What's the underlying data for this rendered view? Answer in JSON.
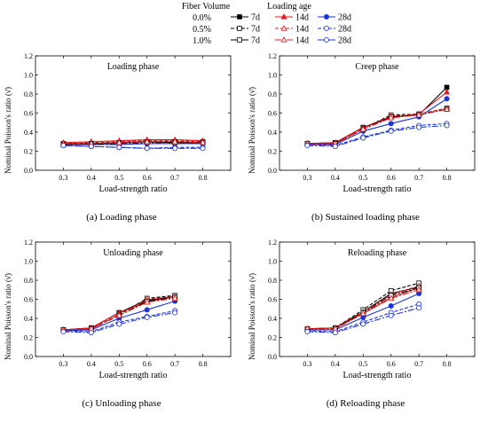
{
  "legend": {
    "fiber_title": "Fiber Volume",
    "age_title": "Loading age",
    "fiber_levels": [
      "0.0%",
      "0.5%",
      "1.0%"
    ],
    "ages": [
      "7d",
      "14d",
      "28d"
    ]
  },
  "colors": {
    "7d": "#000000",
    "14d": "#e3191c",
    "28d": "#1a35d6"
  },
  "chart_data": [
    {
      "type": "line",
      "panel_label": "(a)  Loading phase",
      "inner_title": "Loading phase",
      "xlabel": "Load-strength ratio",
      "ylabel": "Nominal Poisson's ratio (ν̄)",
      "x": [
        0.3,
        0.4,
        0.5,
        0.6,
        0.7,
        0.8
      ],
      "xlim": [
        0.2,
        0.9
      ],
      "ylim": [
        0.0,
        1.2
      ],
      "xticks": [
        "0.3",
        "0.4",
        "0.5",
        "0.6",
        "0.7",
        "0.8"
      ],
      "yticks": [
        "0.0",
        "0.2",
        "0.4",
        "0.6",
        "0.8",
        "1.0",
        "1.2"
      ],
      "series": [
        {
          "fiber": "0.0%",
          "age": "7d",
          "values": [
            0.28,
            0.28,
            0.29,
            0.3,
            0.29,
            0.29
          ]
        },
        {
          "fiber": "0.0%",
          "age": "14d",
          "values": [
            0.29,
            0.3,
            0.31,
            0.32,
            0.32,
            0.31
          ]
        },
        {
          "fiber": "0.0%",
          "age": "28d",
          "values": [
            0.27,
            0.27,
            0.27,
            0.28,
            0.28,
            0.28
          ]
        },
        {
          "fiber": "0.5%",
          "age": "7d",
          "values": [
            0.27,
            0.28,
            0.29,
            0.3,
            0.3,
            0.3
          ]
        },
        {
          "fiber": "0.5%",
          "age": "14d",
          "values": [
            0.28,
            0.29,
            0.3,
            0.31,
            0.31,
            0.3
          ]
        },
        {
          "fiber": "0.5%",
          "age": "28d",
          "values": [
            0.26,
            0.25,
            0.24,
            0.23,
            0.24,
            0.24
          ]
        },
        {
          "fiber": "1.0%",
          "age": "7d",
          "values": [
            0.27,
            0.27,
            0.28,
            0.29,
            0.29,
            0.29
          ]
        },
        {
          "fiber": "1.0%",
          "age": "14d",
          "values": [
            0.28,
            0.28,
            0.29,
            0.3,
            0.3,
            0.29
          ]
        },
        {
          "fiber": "1.0%",
          "age": "28d",
          "values": [
            0.26,
            0.25,
            0.24,
            0.23,
            0.23,
            0.23
          ]
        }
      ]
    },
    {
      "type": "line",
      "panel_label": "(b)  Sustained loading phase",
      "inner_title": "Creep phase",
      "xlabel": "Load-strength ratio",
      "ylabel": "Nominal Poisson's ratio (ν̄)",
      "x": [
        0.3,
        0.4,
        0.5,
        0.6,
        0.7,
        0.8
      ],
      "xlim": [
        0.2,
        0.9
      ],
      "ylim": [
        0.0,
        1.2
      ],
      "xticks": [
        "0.3",
        "0.4",
        "0.5",
        "0.6",
        "0.7",
        "0.8"
      ],
      "yticks": [
        "0.0",
        "0.2",
        "0.4",
        "0.6",
        "0.8",
        "1.0",
        "1.2"
      ],
      "series": [
        {
          "fiber": "0.0%",
          "age": "7d",
          "values": [
            0.28,
            0.29,
            0.45,
            0.56,
            0.58,
            0.87
          ]
        },
        {
          "fiber": "0.0%",
          "age": "14d",
          "values": [
            0.28,
            0.29,
            0.45,
            0.55,
            0.59,
            0.82
          ]
        },
        {
          "fiber": "0.0%",
          "age": "28d",
          "values": [
            0.27,
            0.27,
            0.41,
            0.49,
            0.56,
            0.75
          ]
        },
        {
          "fiber": "0.5%",
          "age": "7d",
          "values": [
            0.28,
            0.28,
            0.44,
            0.58,
            0.59,
            0.65
          ]
        },
        {
          "fiber": "0.5%",
          "age": "14d",
          "values": [
            0.28,
            0.28,
            0.44,
            0.57,
            0.59,
            0.65
          ]
        },
        {
          "fiber": "0.5%",
          "age": "28d",
          "values": [
            0.27,
            0.26,
            0.35,
            0.42,
            0.47,
            0.49
          ]
        },
        {
          "fiber": "1.0%",
          "age": "7d",
          "values": [
            0.28,
            0.28,
            0.43,
            0.56,
            0.58,
            0.64
          ]
        },
        {
          "fiber": "1.0%",
          "age": "14d",
          "values": [
            0.28,
            0.28,
            0.43,
            0.55,
            0.58,
            0.64
          ]
        },
        {
          "fiber": "1.0%",
          "age": "28d",
          "values": [
            0.26,
            0.25,
            0.34,
            0.41,
            0.45,
            0.47
          ]
        }
      ]
    },
    {
      "type": "line",
      "panel_label": "(c)  Unloading phase",
      "inner_title": "Unloading phase",
      "xlabel": "Load-strength ratio",
      "ylabel": "Nominal Poisson's ratio (ν̄)",
      "x": [
        0.3,
        0.4,
        0.5,
        0.6,
        0.7
      ],
      "xlim": [
        0.2,
        0.9
      ],
      "ylim": [
        0.0,
        1.2
      ],
      "xticks": [
        "0.3",
        "0.4",
        "0.5",
        "0.6",
        "0.7",
        "0.8"
      ],
      "yticks": [
        "0.0",
        "0.2",
        "0.4",
        "0.6",
        "0.8",
        "1.0",
        "1.2"
      ],
      "series": [
        {
          "fiber": "0.0%",
          "age": "7d",
          "values": [
            0.28,
            0.3,
            0.46,
            0.59,
            0.63
          ]
        },
        {
          "fiber": "0.0%",
          "age": "14d",
          "values": [
            0.28,
            0.3,
            0.46,
            0.57,
            0.63
          ]
        },
        {
          "fiber": "0.0%",
          "age": "28d",
          "values": [
            0.27,
            0.28,
            0.4,
            0.49,
            0.58
          ]
        },
        {
          "fiber": "0.5%",
          "age": "7d",
          "values": [
            0.28,
            0.29,
            0.44,
            0.61,
            0.64
          ]
        },
        {
          "fiber": "0.5%",
          "age": "14d",
          "values": [
            0.28,
            0.29,
            0.44,
            0.6,
            0.63
          ]
        },
        {
          "fiber": "0.5%",
          "age": "28d",
          "values": [
            0.27,
            0.26,
            0.36,
            0.42,
            0.48
          ]
        },
        {
          "fiber": "1.0%",
          "age": "7d",
          "values": [
            0.28,
            0.29,
            0.43,
            0.58,
            0.62
          ]
        },
        {
          "fiber": "1.0%",
          "age": "14d",
          "values": [
            0.28,
            0.29,
            0.43,
            0.57,
            0.61
          ]
        },
        {
          "fiber": "1.0%",
          "age": "28d",
          "values": [
            0.26,
            0.25,
            0.34,
            0.41,
            0.46
          ]
        }
      ]
    },
    {
      "type": "line",
      "panel_label": "(d)  Reloading phase",
      "inner_title": "Reloading phase",
      "xlabel": "Load-strength ratio",
      "ylabel": "Nominal Poisson's ratio (ν̄)",
      "x": [
        0.3,
        0.4,
        0.5,
        0.6,
        0.7
      ],
      "xlim": [
        0.2,
        0.9
      ],
      "ylim": [
        0.0,
        1.2
      ],
      "xticks": [
        "0.3",
        "0.4",
        "0.5",
        "0.6",
        "0.7",
        "0.8"
      ],
      "yticks": [
        "0.0",
        "0.2",
        "0.4",
        "0.6",
        "0.8",
        "1.0",
        "1.2"
      ],
      "series": [
        {
          "fiber": "0.0%",
          "age": "7d",
          "values": [
            0.29,
            0.3,
            0.47,
            0.66,
            0.73
          ]
        },
        {
          "fiber": "0.0%",
          "age": "14d",
          "values": [
            0.29,
            0.3,
            0.45,
            0.62,
            0.72
          ]
        },
        {
          "fiber": "0.0%",
          "age": "28d",
          "values": [
            0.28,
            0.28,
            0.41,
            0.53,
            0.66
          ]
        },
        {
          "fiber": "0.5%",
          "age": "7d",
          "values": [
            0.29,
            0.3,
            0.49,
            0.69,
            0.77
          ]
        },
        {
          "fiber": "0.5%",
          "age": "14d",
          "values": [
            0.29,
            0.3,
            0.47,
            0.65,
            0.74
          ]
        },
        {
          "fiber": "0.5%",
          "age": "28d",
          "values": [
            0.27,
            0.26,
            0.36,
            0.46,
            0.55
          ]
        },
        {
          "fiber": "1.0%",
          "age": "7d",
          "values": [
            0.29,
            0.29,
            0.46,
            0.64,
            0.72
          ]
        },
        {
          "fiber": "1.0%",
          "age": "14d",
          "values": [
            0.29,
            0.29,
            0.45,
            0.61,
            0.7
          ]
        },
        {
          "fiber": "1.0%",
          "age": "28d",
          "values": [
            0.26,
            0.25,
            0.34,
            0.43,
            0.51
          ]
        }
      ]
    }
  ]
}
